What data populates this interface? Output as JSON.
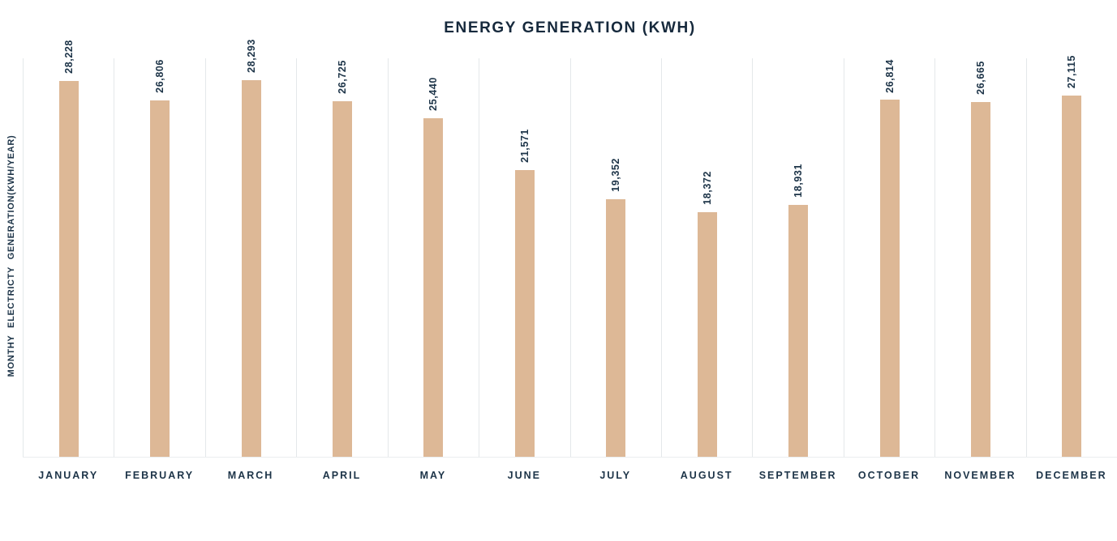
{
  "chart_data": {
    "type": "bar",
    "title": "ENERGY GENERATION (KWH)",
    "ylabel": "MONTHY ELECTRICTY GENERATION(KWH/YEAR)",
    "xlabel": "",
    "categories": [
      "JANUARY",
      "FEBRUARY",
      "MARCH",
      "APRIL",
      "MAY",
      "JUNE",
      "JULY",
      "AUGUST",
      "SEPTEMBER",
      "OCTOBER",
      "NOVEMBER",
      "DECEMBER"
    ],
    "values": [
      28228,
      26806,
      28293,
      26725,
      25440,
      21571,
      19352,
      18372,
      18931,
      26814,
      26665,
      27115
    ],
    "value_labels": [
      "28,228",
      "26,806",
      "28,293",
      "26,725",
      "25,440",
      "21,571",
      "19,352",
      "18,372",
      "18,931",
      "26,814",
      "26,665",
      "27,115"
    ],
    "ylim": [
      0,
      30000
    ],
    "grid": "vertical column separators only",
    "legend": "none",
    "bar_color": "#DDB896",
    "text_color": "#1D3448",
    "title_color": "#16293C",
    "gridline_color": "#E4E8EA"
  }
}
